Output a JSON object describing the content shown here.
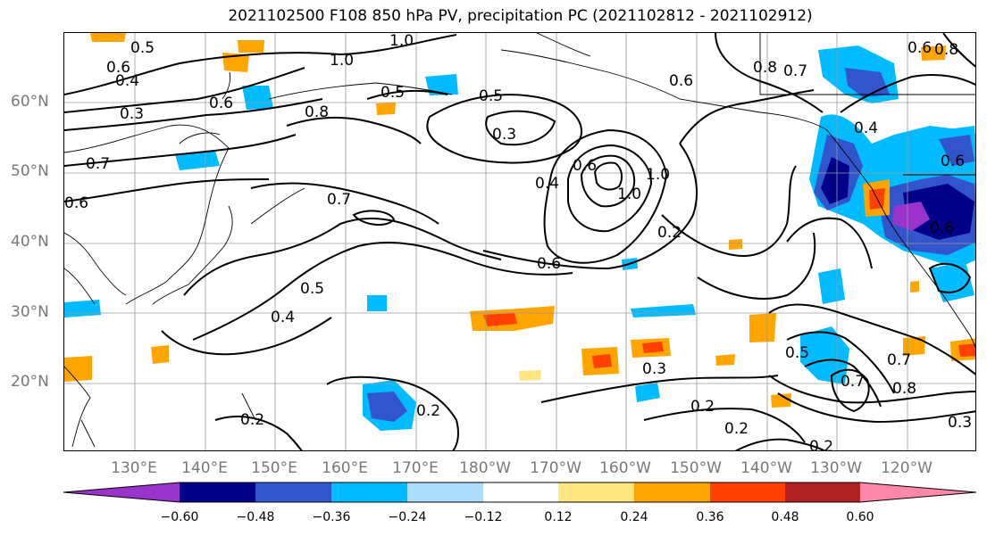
{
  "title": "2021102500 F108 850 hPa PV, precipitation PC (2021102812 - 2021102912)",
  "lat_labels": [
    "60°N",
    "50°N",
    "40°N",
    "30°N",
    "20°N"
  ],
  "lon_labels": [
    "130°E",
    "140°E",
    "150°E",
    "160°E",
    "170°E",
    "180°W",
    "170°W",
    "160°W",
    "150°W",
    "140°W",
    "130°W",
    "120°W"
  ],
  "colorbar": {
    "tick_labels": [
      "−0.60",
      "−0.48",
      "−0.36",
      "−0.24",
      "−0.12",
      "0.12",
      "0.24",
      "0.36",
      "0.48",
      "0.60"
    ],
    "colors": [
      "#9933cc",
      "#000088",
      "#3355cc",
      "#00bbff",
      "#aaddff",
      "#ffffff",
      "#ffe680",
      "#ffa500",
      "#ff4000",
      "#b22222",
      "#ff88aa"
    ]
  },
  "contour_labels": [
    {
      "text": "0.5"
    },
    {
      "text": "0.6"
    },
    {
      "text": "0.4"
    },
    {
      "text": "0.3"
    },
    {
      "text": "1.0"
    },
    {
      "text": "1.0"
    },
    {
      "text": "0.5"
    },
    {
      "text": "0.8"
    },
    {
      "text": "0.6"
    },
    {
      "text": "0.7"
    },
    {
      "text": "0.5"
    },
    {
      "text": "0.3"
    },
    {
      "text": "0.4"
    },
    {
      "text": "0.6"
    },
    {
      "text": "1.0"
    },
    {
      "text": "1.0"
    },
    {
      "text": "0.6"
    },
    {
      "text": "0.2"
    },
    {
      "text": "0.6"
    },
    {
      "text": "0.8"
    },
    {
      "text": "0.7"
    },
    {
      "text": "0.8"
    },
    {
      "text": "0.6"
    },
    {
      "text": "0.4"
    },
    {
      "text": "0.6"
    },
    {
      "text": "0.7"
    },
    {
      "text": "0.5"
    },
    {
      "text": "0.4"
    },
    {
      "text": "0.3"
    },
    {
      "text": "0.2"
    },
    {
      "text": "0.2"
    },
    {
      "text": "0.2"
    },
    {
      "text": "0.2"
    },
    {
      "text": "0.2"
    },
    {
      "text": "0.5"
    },
    {
      "text": "0.8"
    },
    {
      "text": "0.3"
    },
    {
      "text": "0.6"
    },
    {
      "text": "0.7"
    },
    {
      "text": "0.7"
    },
    {
      "text": "0.6"
    }
  ]
}
